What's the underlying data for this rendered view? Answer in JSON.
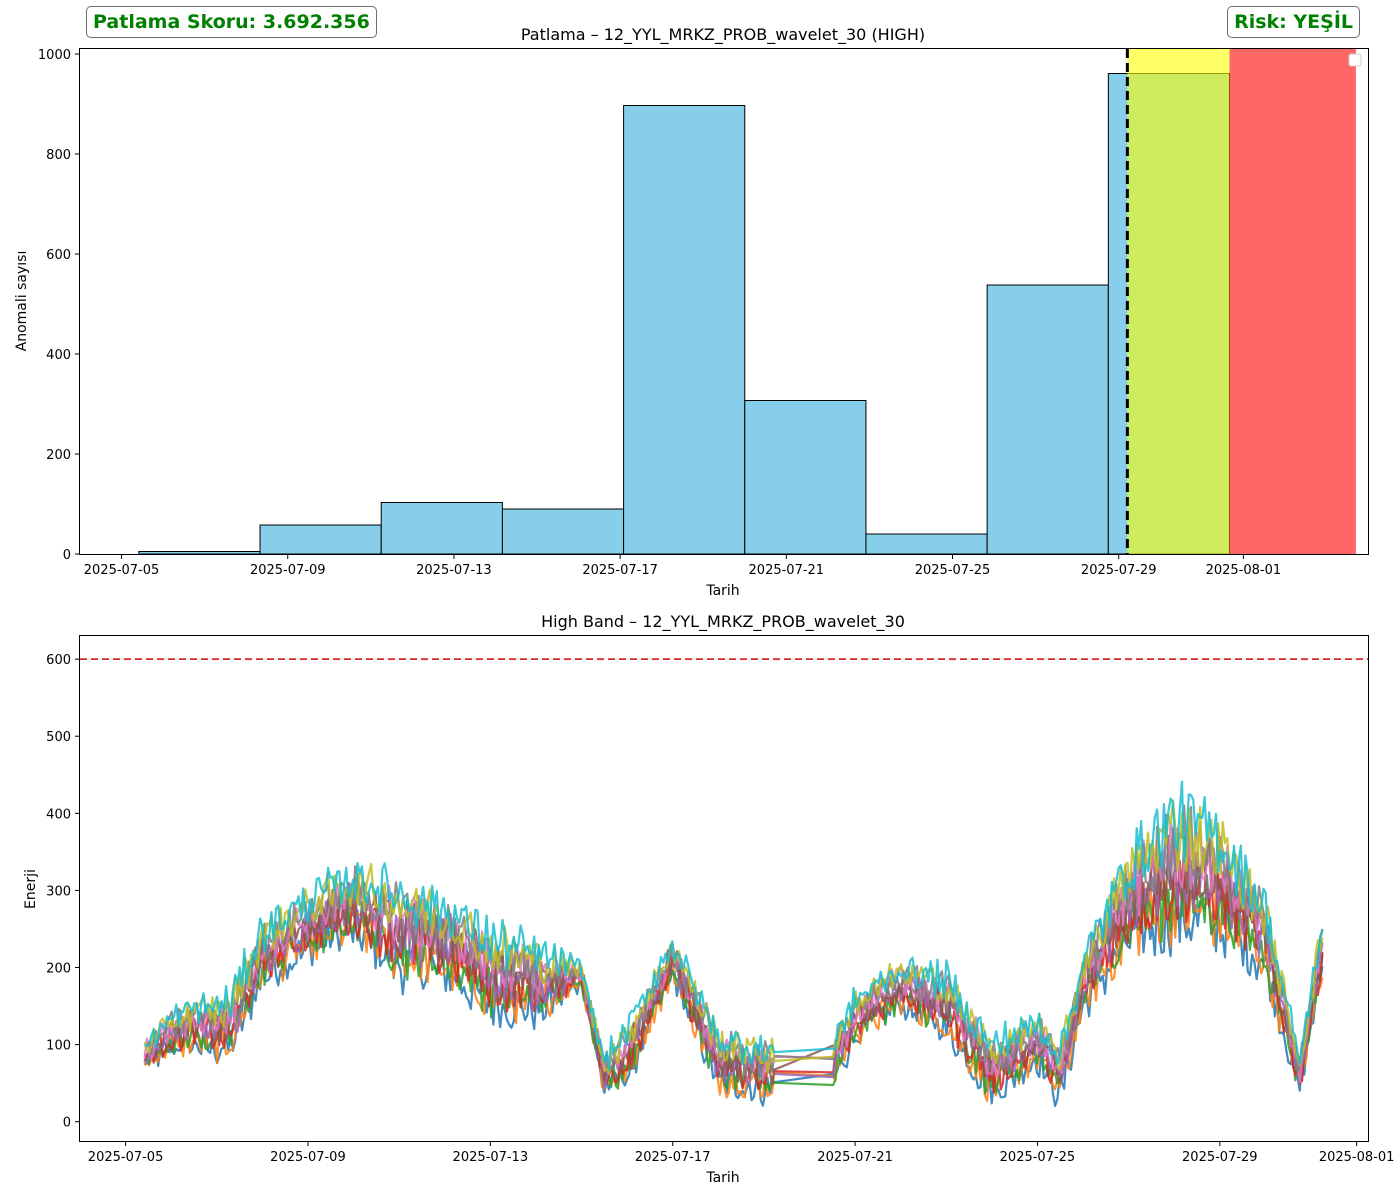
{
  "header": {
    "score_label": "Patlama Skoru: 3.692.356",
    "risk_label": "Risk: YEŞİL",
    "risk_color": "#008000"
  },
  "chart_data": [
    {
      "type": "bar",
      "title": "Patlama – 12_YYL_MRKZ_PROB_wavelet_30 (HIGH)",
      "xlabel": "Tarih",
      "ylabel": "Anomali sayısı",
      "xlim": [
        "2025-07-04",
        "2025-08-04"
      ],
      "ylim": [
        0,
        1010
      ],
      "x_ticks": [
        "2025-07-05",
        "2025-07-09",
        "2025-07-13",
        "2025-07-17",
        "2025-07-21",
        "2025-07-25",
        "2025-07-29",
        "2025-08-01"
      ],
      "y_ticks": [
        0,
        200,
        400,
        600,
        800,
        1000
      ],
      "bar_color": "#87ceeb",
      "bins": [
        {
          "start": "2025-07-05T10:00",
          "end": "2025-07-08T08:00",
          "value": 5
        },
        {
          "start": "2025-07-08T08:00",
          "end": "2025-07-11T06:00",
          "value": 58
        },
        {
          "start": "2025-07-11T06:00",
          "end": "2025-07-14T04:00",
          "value": 103
        },
        {
          "start": "2025-07-14T04:00",
          "end": "2025-07-17T02:00",
          "value": 90
        },
        {
          "start": "2025-07-17T02:00",
          "end": "2025-07-20T00:00",
          "value": 897
        },
        {
          "start": "2025-07-20T00:00",
          "end": "2025-07-22T22:00",
          "value": 307
        },
        {
          "start": "2025-07-22T22:00",
          "end": "2025-07-25T20:00",
          "value": 40
        },
        {
          "start": "2025-07-25T20:00",
          "end": "2025-07-28T18:00",
          "value": 538
        },
        {
          "start": "2025-07-28T18:00",
          "end": "2025-07-31T16:00",
          "value": 961
        }
      ],
      "current_marker": "2025-07-29T05:00",
      "zones": [
        {
          "name": "yellow",
          "start": "2025-07-29T05:00",
          "end": "2025-07-31T16:00",
          "color": "#ffff00"
        },
        {
          "name": "red",
          "start": "2025-07-31T16:00",
          "end": "2025-08-03T17:00",
          "color": "#ff0000"
        }
      ],
      "legend": "top-right"
    },
    {
      "type": "line",
      "title": "High Band – 12_YYL_MRKZ_PROB_wavelet_30",
      "xlabel": "Tarih",
      "ylabel": "Enerji",
      "xlim": [
        "2025-07-04",
        "2025-08-01T06:00"
      ],
      "ylim": [
        -25,
        630
      ],
      "x_ticks": [
        "2025-07-05",
        "2025-07-09",
        "2025-07-13",
        "2025-07-17",
        "2025-07-21",
        "2025-07-25",
        "2025-07-29",
        "2025-08-01"
      ],
      "y_ticks": [
        0,
        100,
        200,
        300,
        400,
        500,
        600
      ],
      "threshold": {
        "value": 600,
        "color": "#d62728"
      },
      "series_colors": [
        "#1f77b4",
        "#ff7f0e",
        "#2ca02c",
        "#d62728",
        "#9467bd",
        "#8c564b",
        "#e377c2",
        "#7f7f7f",
        "#bcbd22",
        "#17becf"
      ],
      "envelope": {
        "dates": [
          "2025-07-05T10:00",
          "2025-07-06",
          "2025-07-06T12:00",
          "2025-07-07T06:00",
          "2025-07-08",
          "2025-07-09",
          "2025-07-10",
          "2025-07-11",
          "2025-07-12",
          "2025-07-13",
          "2025-07-14",
          "2025-07-15",
          "2025-07-15T12:00",
          "2025-07-16",
          "2025-07-17",
          "2025-07-18",
          "2025-07-19",
          "2025-07-19T08:00",
          "2025-07-20",
          "2025-07-20T12:00",
          "2025-07-21",
          "2025-07-22",
          "2025-07-23",
          "2025-07-24",
          "2025-07-25",
          "2025-07-25T12:00",
          "2025-07-26",
          "2025-07-27",
          "2025-07-28",
          "2025-07-29",
          "2025-07-30",
          "2025-07-30T18:00",
          "2025-07-31T06:00"
        ],
        "low": [
          70,
          95,
          98,
          90,
          185,
          220,
          245,
          200,
          190,
          150,
          140,
          180,
          40,
          60,
          190,
          50,
          40,
          40,
          40,
          50,
          110,
          150,
          120,
          35,
          80,
          30,
          150,
          230,
          260,
          250,
          200,
          40,
          200
        ],
        "high": [
          100,
          135,
          150,
          155,
          250,
          290,
          320,
          300,
          280,
          240,
          220,
          200,
          80,
          120,
          235,
          110,
          95,
          95,
          90,
          100,
          160,
          200,
          185,
          100,
          130,
          90,
          210,
          340,
          400,
          375,
          280,
          80,
          260
        ]
      }
    }
  ]
}
